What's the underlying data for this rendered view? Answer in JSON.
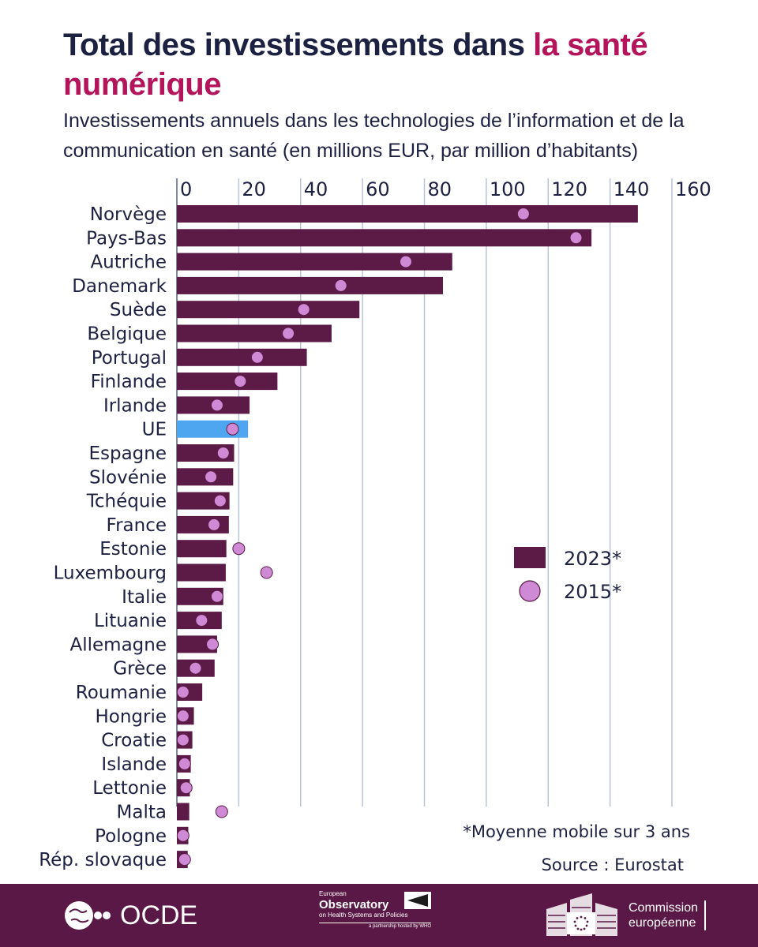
{
  "title": {
    "main": "Total des investissements dans",
    "accent": "la santé numérique"
  },
  "subtitle": "Investissements annuels dans les technologies de l’information et de la communication en santé (en millions EUR, par million d’habitants)",
  "chart_data": {
    "type": "bar",
    "orientation": "horizontal",
    "xlim": [
      0,
      160
    ],
    "ticks": [
      0,
      20,
      40,
      60,
      80,
      100,
      120,
      140,
      160
    ],
    "grid": true,
    "categories": [
      "Norvège",
      "Pays-Bas",
      "Autriche",
      "Danemark",
      "Suède",
      "Belgique",
      "Portugal",
      "Finlande",
      "Irlande",
      "UE",
      "Espagne",
      "Slovénie",
      "Tchéquie",
      "France",
      "Estonie",
      "Luxembourg",
      "Italie",
      "Lituanie",
      "Allemagne",
      "Grèce",
      "Roumanie",
      "Hongrie",
      "Croatie",
      "Islande",
      "Lettonie",
      "Malta",
      "Pologne",
      "Rép. slovaque"
    ],
    "highlight": "UE",
    "series": [
      {
        "name": "2023*",
        "type": "bar",
        "color": "#5c1a47",
        "highlight_color": "#4fa6f0",
        "values": [
          149,
          134,
          89,
          86,
          59,
          50,
          42,
          32.5,
          23.5,
          23,
          18.5,
          18.2,
          17,
          16.8,
          16,
          15.8,
          15,
          14.5,
          13,
          12.2,
          8.2,
          5.5,
          5,
          4.5,
          4.2,
          4,
          3.7,
          3.5
        ]
      },
      {
        "name": "2015*",
        "type": "point",
        "color": "#cf8ad6",
        "values": [
          112,
          129,
          74,
          53,
          41,
          36,
          26,
          20.5,
          13,
          18,
          15,
          11,
          14,
          12,
          20,
          29,
          13,
          8,
          11.5,
          6,
          2,
          2,
          2,
          2.5,
          3,
          14.5,
          2,
          2.5
        ]
      }
    ],
    "legend": {
      "position": "right",
      "items": [
        "2023*",
        "2015*"
      ]
    }
  },
  "note": "*Moyenne mobile sur 3 ans",
  "source": "Source : Eurostat",
  "footer": {
    "oecd": "OCDE",
    "observatory": {
      "line1": "European",
      "line2": "Observatory",
      "line3": "on Health Systems and Policies",
      "line4": "a partnership hosted by WHO"
    },
    "commission": {
      "line1": "Commission",
      "line2": "européenne"
    },
    "background": "#5a1846"
  }
}
